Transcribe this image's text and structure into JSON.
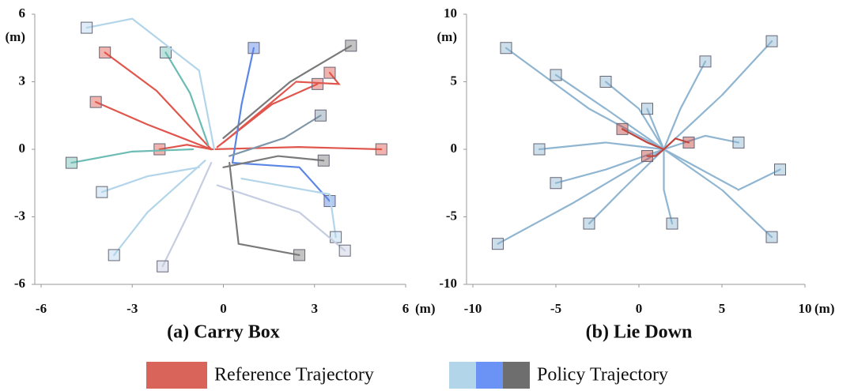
{
  "chart_data": [
    {
      "type": "line",
      "title": "(a) Carry Box",
      "x_unit": "(m)",
      "y_unit": "(m)",
      "xlim": [
        -6,
        6
      ],
      "ylim": [
        -6,
        6
      ],
      "xticks": [
        -6,
        -3,
        0,
        3,
        6
      ],
      "yticks": [
        -6,
        -3,
        0,
        3,
        6
      ],
      "series": [
        {
          "color": "#e0564c",
          "x": [
            -0.4,
            -2.2,
            -3.9
          ],
          "values": [
            0,
            2.6,
            4.3
          ]
        },
        {
          "color": "#e0564c",
          "x": [
            -0.4,
            -2.5,
            -4.2
          ],
          "values": [
            0,
            1.1,
            2.1
          ]
        },
        {
          "color": "#e0564c",
          "x": [
            -0.4,
            -1.2,
            -2.1
          ],
          "values": [
            0,
            0.2,
            0
          ]
        },
        {
          "color": "#e0564c",
          "x": [
            -0.4,
            2.5,
            5.2
          ],
          "values": [
            0,
            0.1,
            0
          ]
        },
        {
          "color": "#e0564c",
          "x": [
            -0.2,
            1.6,
            3.1
          ],
          "values": [
            0.1,
            2.0,
            2.9
          ]
        },
        {
          "color": "#e0564c",
          "x": [
            0,
            2.4,
            3.8,
            3.5
          ],
          "values": [
            0.3,
            3.0,
            2.9,
            3.4
          ]
        },
        {
          "color": "#6cbcb4",
          "x": [
            -0.5,
            -1.1,
            -1.9
          ],
          "values": [
            0.2,
            2.5,
            4.3
          ]
        },
        {
          "color": "#6cbcb4",
          "x": [
            -1,
            -3,
            -5
          ],
          "values": [
            0,
            -0.1,
            -0.6
          ]
        },
        {
          "color": "#5b86e6",
          "x": [
            0.3,
            0.6,
            1
          ],
          "values": [
            -0.6,
            2.0,
            4.5
          ]
        },
        {
          "color": "#5b86e6",
          "x": [
            0.3,
            2.5,
            3.5
          ],
          "values": [
            -0.6,
            -0.8,
            -2.3
          ]
        },
        {
          "color": "#7a7a7a",
          "x": [
            0,
            2.2,
            4.2
          ],
          "values": [
            0.5,
            3.0,
            4.6
          ]
        },
        {
          "color": "#7a7a7a",
          "x": [
            0.2,
            0.5,
            2.5
          ],
          "values": [
            -0.6,
            -4.2,
            -4.7
          ]
        },
        {
          "color": "#7a7a7a",
          "x": [
            0,
            1.8,
            3.3
          ],
          "values": [
            -0.8,
            -0.3,
            -0.5
          ]
        },
        {
          "color": "#7f96a8",
          "x": [
            0.2,
            2.0,
            3.2
          ],
          "values": [
            -0.3,
            0.5,
            1.5
          ]
        },
        {
          "color": "#b3d5ea",
          "x": [
            -0.3,
            -0.8,
            -3.0,
            -4.5
          ],
          "values": [
            0,
            3.5,
            5.8,
            5.4
          ]
        },
        {
          "color": "#b3d5ea",
          "x": [
            -0.6,
            -2.5,
            -3.6
          ],
          "values": [
            -0.5,
            -2.8,
            -4.7
          ]
        },
        {
          "color": "#c5cde0",
          "x": [
            -0.4,
            -1.2,
            -2.0
          ],
          "values": [
            -0.6,
            -3.0,
            -5.2
          ]
        },
        {
          "color": "#b3d5ea",
          "x": [
            -0.8,
            -2.5,
            -4.0
          ],
          "values": [
            -0.8,
            -1.2,
            -1.9
          ]
        },
        {
          "color": "#b3d5ea",
          "x": [
            0.6,
            3.5,
            3.7
          ],
          "values": [
            -1.3,
            -2.0,
            -3.9
          ]
        },
        {
          "color": "#c5cde0",
          "x": [
            -0.2,
            2.5,
            4.0
          ],
          "values": [
            -1.6,
            -2.8,
            -4.5
          ]
        }
      ]
    },
    {
      "type": "line",
      "title": "(b) Lie Down",
      "x_unit": "(m)",
      "y_unit": "(m)",
      "xlim": [
        -10,
        10
      ],
      "ylim": [
        -10,
        10
      ],
      "xticks": [
        -10,
        -5,
        0,
        5,
        10
      ],
      "yticks": [
        -10,
        -5,
        0,
        5,
        10
      ],
      "series": [
        {
          "color": "#8fb5d1",
          "x": [
            1.5,
            -3,
            -8
          ],
          "values": [
            0,
            3,
            7.5
          ]
        },
        {
          "color": "#8fb5d1",
          "x": [
            1.5,
            -2,
            -5
          ],
          "values": [
            0,
            3,
            5.5
          ]
        },
        {
          "color": "#8fb5d1",
          "x": [
            1.5,
            0,
            -2
          ],
          "values": [
            0,
            3,
            5
          ]
        },
        {
          "color": "#8fb5d1",
          "x": [
            1.5,
            2.5,
            4
          ],
          "values": [
            0,
            3,
            6.5
          ]
        },
        {
          "color": "#8fb5d1",
          "x": [
            1.5,
            5,
            8
          ],
          "values": [
            0,
            4,
            8
          ]
        },
        {
          "color": "#8fb5d1",
          "x": [
            1.5,
            1,
            0.5
          ],
          "values": [
            0,
            1.5,
            3
          ]
        },
        {
          "color": "#8fb5d1",
          "x": [
            1.5,
            -2,
            -6
          ],
          "values": [
            0,
            0.5,
            0
          ]
        },
        {
          "color": "#8fb5d1",
          "x": [
            1.5,
            -2,
            -5
          ],
          "values": [
            0,
            -1.5,
            -2.5
          ]
        },
        {
          "color": "#8fb5d1",
          "x": [
            1.5,
            4,
            6
          ],
          "values": [
            0,
            1,
            0.5
          ]
        },
        {
          "color": "#8fb5d1",
          "x": [
            1.5,
            6,
            8.5
          ],
          "values": [
            0,
            -3,
            -1.5
          ]
        },
        {
          "color": "#8fb5d1",
          "x": [
            1.5,
            -1,
            -3
          ],
          "values": [
            0,
            -3,
            -5.5
          ]
        },
        {
          "color": "#8fb5d1",
          "x": [
            1.5,
            1.5,
            2
          ],
          "values": [
            0,
            -3,
            -5.5
          ]
        },
        {
          "color": "#8fb5d1",
          "x": [
            1.5,
            -4,
            -8.5
          ],
          "values": [
            0,
            -4,
            -7
          ]
        },
        {
          "color": "#8fb5d1",
          "x": [
            1.5,
            5,
            8
          ],
          "values": [
            0,
            -3,
            -6.5
          ]
        },
        {
          "color": "#c2453d",
          "x": [
            1.5,
            0.5,
            -1
          ],
          "values": [
            0,
            0.5,
            1.5
          ]
        },
        {
          "color": "#c2453d",
          "x": [
            1.5,
            1,
            0.5
          ],
          "values": [
            0,
            -0.5,
            -0.5
          ]
        },
        {
          "color": "#c2453d",
          "x": [
            1.5,
            2.2,
            3
          ],
          "values": [
            0,
            0.8,
            0.5
          ]
        }
      ]
    }
  ],
  "legend": [
    {
      "label": "Reference Trajectory",
      "colors": [
        "#d9645a"
      ]
    },
    {
      "label": "Policy Trajectory",
      "colors": [
        "#b3d5ea",
        "#6a93f5",
        "#6e6e6e"
      ]
    }
  ]
}
